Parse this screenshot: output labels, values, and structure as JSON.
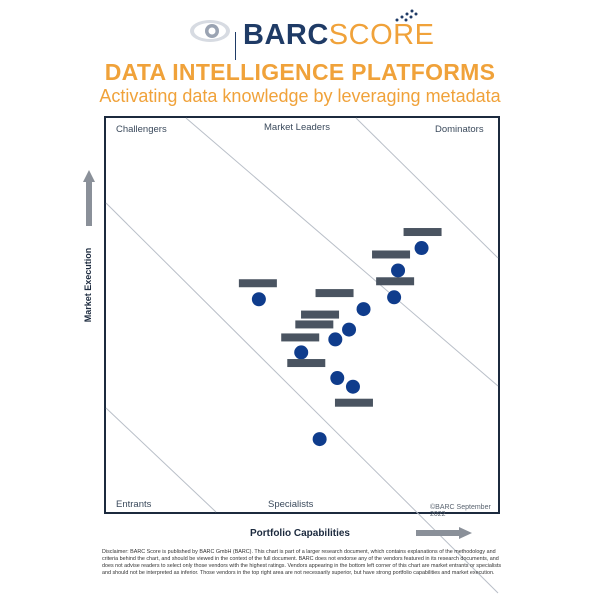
{
  "header": {
    "brand_left": "BARC",
    "brand_right": "SCORE",
    "title": "DATA INTELLIGENCE PLATFORMS",
    "subtitle": "Activating data knowledge by leveraging metadata"
  },
  "colors": {
    "accent": "#f0a23a",
    "navy": "#1f3b66",
    "dot": "#0f3c8c",
    "bar": "#4a5461"
  },
  "zones": {
    "top_left": "Challengers",
    "top_center": "Market Leaders",
    "top_right": "Dominators",
    "bottom_left": "Entrants",
    "bottom_center": "Specialists"
  },
  "credit": "©BARC September 2022",
  "axes": {
    "y_label": "Market Execution",
    "x_label": "Portfolio Capabilities"
  },
  "disclaimer": "Disclaimer: BARC Score is published by BARC GmbH (BARC). This chart is part of a larger research document, which contains explanations of the methodology and criteria behind the chart, and should be viewed in the context of the full document. BARC does not endorse any of the vendors featured in its research documents, and does not advise readers to select only those vendors with the highest ratings. Vendors appearing in the bottom left corner of this chart are market entrants or specialists and should not be interpreted as inferior. Those vendors in the top right area are not necessarily superior, but have strong portfolio capabilities and market execution.",
  "chart_data": {
    "type": "scatter",
    "xlabel": "Portfolio Capabilities",
    "ylabel": "Market Execution",
    "xlim": [
      0,
      100
    ],
    "ylim": [
      0,
      100
    ],
    "grid": false,
    "note": "Vendor names are hidden (redacted bars) in the image",
    "points": [
      {
        "x": 80.5,
        "y": 67.0
      },
      {
        "x": 74.5,
        "y": 61.3
      },
      {
        "x": 73.5,
        "y": 54.5
      },
      {
        "x": 65.7,
        "y": 51.5
      },
      {
        "x": 39.0,
        "y": 54.0
      },
      {
        "x": 62.0,
        "y": 46.3
      },
      {
        "x": 58.5,
        "y": 43.8
      },
      {
        "x": 49.8,
        "y": 40.5
      },
      {
        "x": 59.0,
        "y": 34.0
      },
      {
        "x": 63.0,
        "y": 31.8
      },
      {
        "x": 54.5,
        "y": 18.5
      }
    ]
  }
}
